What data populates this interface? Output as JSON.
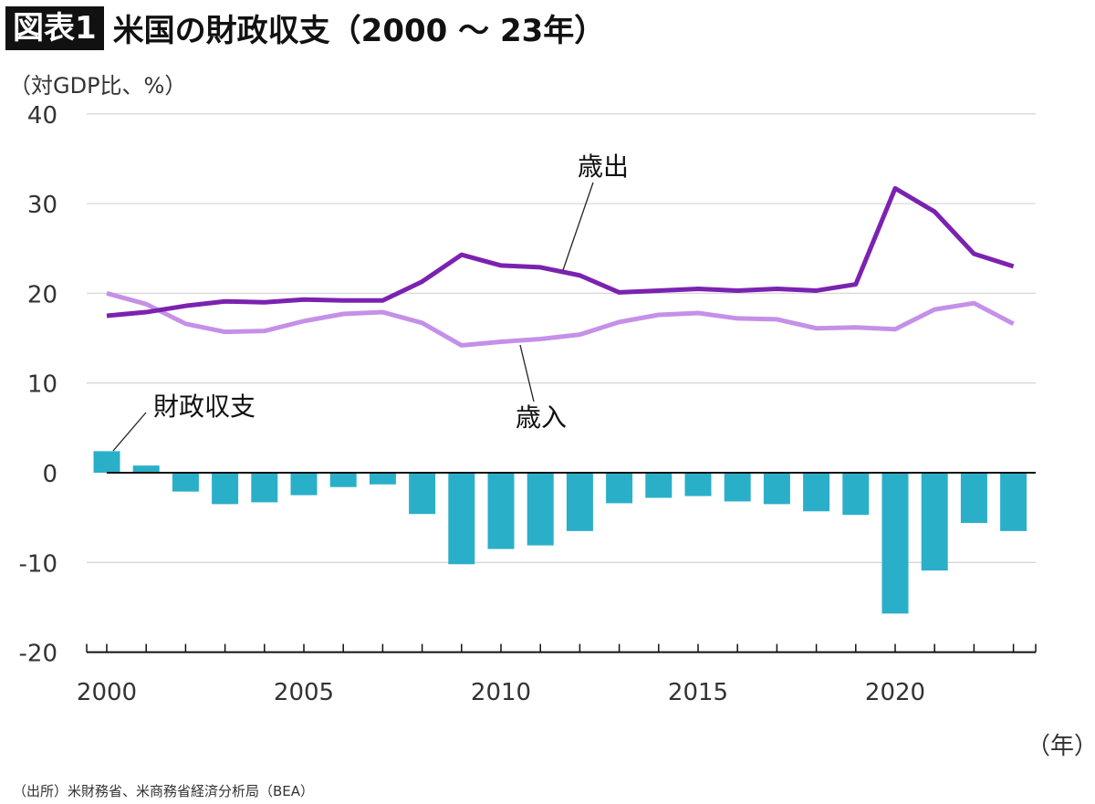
{
  "header": {
    "badge": "図表1",
    "title": "米国の財政収支（2000 ～ 23年）"
  },
  "chart_data": {
    "type": "line+bar",
    "title": "米国の財政収支（2000 ～ 23年）",
    "ylabel": "（対GDP比、%）",
    "xlabel": "（年）",
    "ylim": [
      -20,
      40
    ],
    "yticks": [
      40,
      30,
      20,
      10,
      0,
      -10,
      -20
    ],
    "xlim": [
      2000,
      2023
    ],
    "xtick_labels": [
      2000,
      2005,
      2010,
      2015,
      2020
    ],
    "grid": true,
    "x": [
      2000,
      2001,
      2002,
      2003,
      2004,
      2005,
      2006,
      2007,
      2008,
      2009,
      2010,
      2011,
      2012,
      2013,
      2014,
      2015,
      2016,
      2017,
      2018,
      2019,
      2020,
      2021,
      2022,
      2023
    ],
    "series": [
      {
        "name": "歳出",
        "type": "line",
        "color": "#7b22b0",
        "values": [
          17.5,
          17.9,
          18.6,
          19.1,
          19.0,
          19.3,
          19.2,
          19.2,
          21.3,
          24.3,
          23.1,
          22.9,
          22.0,
          20.1,
          20.3,
          20.5,
          20.3,
          20.5,
          20.3,
          21.0,
          31.7,
          29.1,
          24.4,
          23.0
        ]
      },
      {
        "name": "歳入",
        "type": "line",
        "color": "#c590e8",
        "values": [
          20.0,
          18.8,
          16.6,
          15.7,
          15.8,
          16.9,
          17.7,
          17.9,
          16.7,
          14.2,
          14.6,
          14.9,
          15.4,
          16.8,
          17.6,
          17.8,
          17.2,
          17.1,
          16.1,
          16.2,
          16.0,
          18.2,
          18.9,
          16.6
        ]
      },
      {
        "name": "財政収支",
        "type": "bar",
        "color": "#2aafc9",
        "values": [
          2.4,
          0.8,
          -2.1,
          -3.5,
          -3.3,
          -2.5,
          -1.6,
          -1.3,
          -4.6,
          -10.2,
          -8.5,
          -8.1,
          -6.5,
          -3.4,
          -2.8,
          -2.6,
          -3.2,
          -3.5,
          -4.3,
          -4.7,
          -15.7,
          -10.9,
          -5.6,
          -6.5
        ]
      }
    ]
  },
  "source": "（出所）米財務省、米商務省経済分析局（BEA）"
}
